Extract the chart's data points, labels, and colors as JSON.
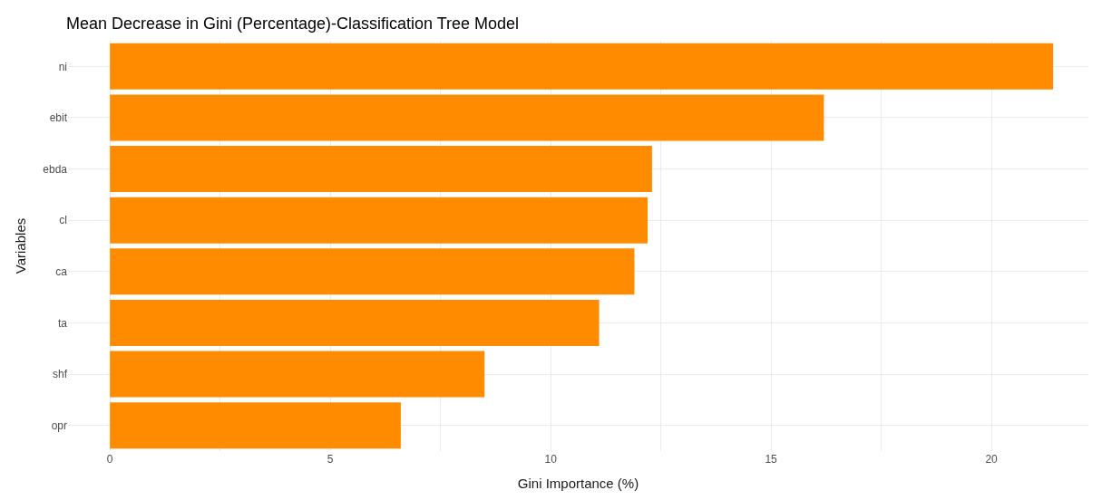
{
  "chart_data": {
    "type": "bar",
    "orientation": "horizontal",
    "title": "Mean Decrease in Gini (Percentage)-Classification Tree Model",
    "xlabel": "Gini Importance (%)",
    "ylabel": "Variables",
    "categories": [
      "ni",
      "ebit",
      "ebda",
      "cl",
      "ca",
      "ta",
      "shf",
      "opr"
    ],
    "values": [
      21.4,
      16.2,
      12.3,
      12.2,
      11.9,
      11.1,
      8.5,
      6.6
    ],
    "color": "#ff8c00",
    "xlim": [
      -0.95,
      22.2
    ],
    "xticks": [
      0,
      {
        "value": 2.5,
        "label": null
      },
      5,
      {
        "value": 7.5,
        "label": null
      },
      10,
      {
        "value": 12.5,
        "label": null
      },
      15,
      {
        "value": 17.5,
        "label": null
      },
      20
    ],
    "grid": true
  }
}
